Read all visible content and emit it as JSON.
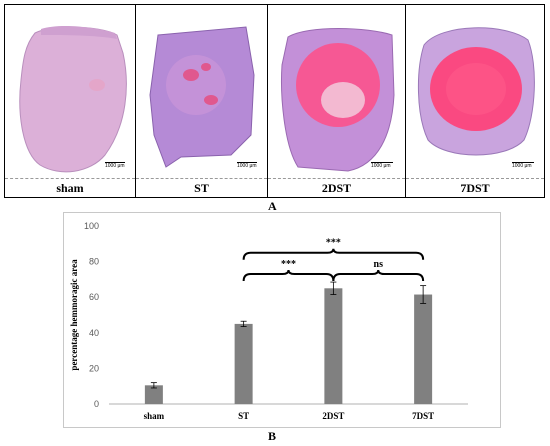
{
  "panel_a": {
    "label": "A",
    "images": [
      {
        "caption": "sham",
        "scale_label": "1000 μm",
        "tissue_color": "#dcb0d8",
        "lesion_color": "#e9a0c0"
      },
      {
        "caption": "ST",
        "scale_label": "1000 μm",
        "tissue_color": "#b58ad6",
        "lesion_color": "#e0588e"
      },
      {
        "caption": "2DST",
        "scale_label": "1000 μm",
        "tissue_color": "#c390d8",
        "lesion_color": "#ff4f88"
      },
      {
        "caption": "7DST",
        "scale_label": "1000 μm",
        "tissue_color": "#c9a4de",
        "lesion_color": "#ff3f77"
      }
    ]
  },
  "panel_b": {
    "label": "B"
  },
  "chart_data": {
    "type": "bar",
    "categories": [
      "sham",
      "ST",
      "2DST",
      "7DST"
    ],
    "values": [
      10.5,
      45,
      65,
      61.5
    ],
    "errors": [
      1.5,
      1.5,
      3.5,
      5
    ],
    "ylabel": "percentage hemmoragic area",
    "ylim": [
      0,
      100
    ],
    "yticks": [
      0,
      20,
      40,
      60,
      80,
      100
    ],
    "bar_color": "#808080",
    "grid": false,
    "annotations": [
      {
        "from": "ST",
        "to": "2DST",
        "text": "***"
      },
      {
        "from": "2DST",
        "to": "7DST",
        "text": "ns"
      },
      {
        "from": "ST",
        "to": "7DST",
        "text": "***"
      }
    ]
  }
}
